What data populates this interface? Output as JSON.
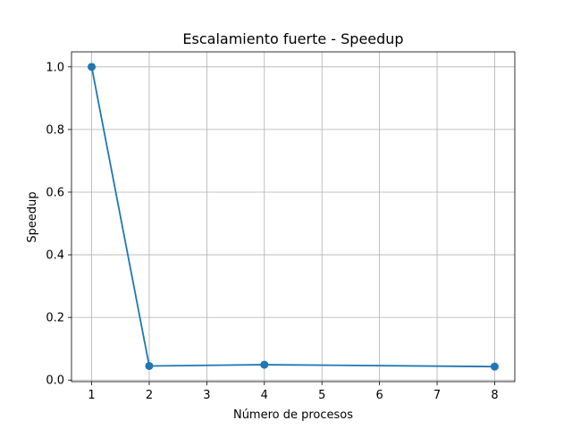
{
  "chart_data": {
    "type": "line",
    "title": "Escalamiento fuerte - Speedup",
    "xlabel": "Número de procesos",
    "ylabel": "Speedup",
    "xlim": [
      0.65,
      8.35
    ],
    "ylim": [
      -0.005,
      1.048
    ],
    "xticks": [
      1,
      2,
      3,
      4,
      5,
      6,
      7,
      8
    ],
    "xtick_labels": [
      "1",
      "2",
      "3",
      "4",
      "5",
      "6",
      "7",
      "8"
    ],
    "yticks": [
      0.0,
      0.2,
      0.4,
      0.6,
      0.8,
      1.0
    ],
    "ytick_labels": [
      "0.0",
      "0.2",
      "0.4",
      "0.6",
      "0.8",
      "1.0"
    ],
    "grid": true,
    "series": [
      {
        "color": "#1f77b4",
        "marker": "circle",
        "x": [
          1,
          2,
          4,
          8
        ],
        "y": [
          1.0,
          0.045,
          0.049,
          0.043
        ]
      }
    ]
  }
}
